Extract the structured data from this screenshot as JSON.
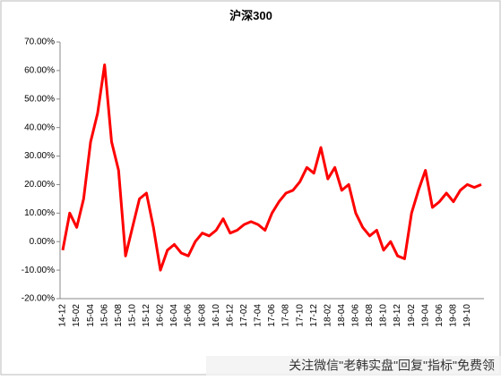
{
  "chart_data": {
    "type": "line",
    "title": "沪深300",
    "categories": [
      "14-12",
      null,
      "15-02",
      null,
      "15-04",
      null,
      "15-06",
      null,
      "15-08",
      null,
      "15-10",
      null,
      "15-12",
      null,
      "16-02",
      null,
      "16-04",
      null,
      "16-06",
      null,
      "16-08",
      null,
      "16-10",
      null,
      "16-12",
      null,
      "17-02",
      null,
      "17-04",
      null,
      "17-06",
      null,
      "17-08",
      null,
      "17-10",
      null,
      "17-12",
      null,
      "18-02",
      null,
      "18-04",
      null,
      "18-06",
      null,
      "18-08",
      null,
      "18-10",
      null,
      "18-12",
      null,
      "19-02",
      null,
      "19-04",
      null,
      "19-06",
      null,
      "19-08",
      null,
      "19-10",
      null,
      null
    ],
    "series": [
      {
        "name": "沪深300",
        "color": "#ff0000",
        "values": [
          -3,
          10,
          5,
          15,
          35,
          45,
          62,
          35,
          25,
          -5,
          5,
          15,
          17,
          5,
          -10,
          -3,
          -1,
          -4,
          -5,
          0,
          3,
          2,
          4,
          8,
          3,
          4,
          6,
          7,
          6,
          4,
          10,
          14,
          17,
          18,
          21,
          26,
          24,
          33,
          22,
          26,
          18,
          20,
          10,
          5,
          2,
          4,
          -3,
          0,
          -5,
          -6,
          10,
          18,
          25,
          12,
          14,
          17,
          14,
          18,
          20,
          19,
          20
        ]
      }
    ],
    "ylim": [
      -20,
      70
    ],
    "yticks": [
      {
        "value": -20,
        "label": "-20.00%"
      },
      {
        "value": -10,
        "label": "-10.00%"
      },
      {
        "value": 0,
        "label": "0.00%"
      },
      {
        "value": 10,
        "label": "10.00%"
      },
      {
        "value": 20,
        "label": "20.00%"
      },
      {
        "value": 30,
        "label": "30.00%"
      },
      {
        "value": 40,
        "label": "40.00%"
      },
      {
        "value": 50,
        "label": "50.00%"
      },
      {
        "value": 60,
        "label": "60.00%"
      },
      {
        "value": 70,
        "label": "70.00%"
      }
    ],
    "watermark": "关注微信\"老韩实盘\"回复\"指标\"免费领"
  }
}
